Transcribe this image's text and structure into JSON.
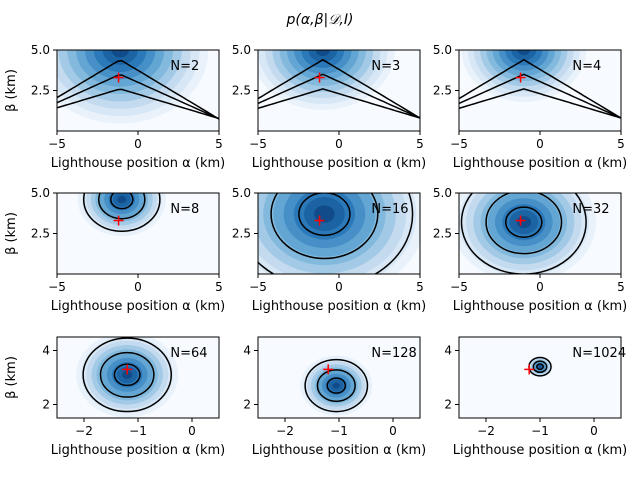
{
  "figure": {
    "suptitle": "p(α,β|𝒟,I)",
    "true_marker": {
      "alpha": -1.2,
      "beta": 3.3,
      "color": "#ff0000",
      "symbol": "+"
    },
    "colormap": "Blues",
    "contour_color": "#000000"
  },
  "chart_data": [
    {
      "type": "heatmap",
      "annotation": "N=2",
      "N": 2,
      "xlabel": "Lighthouse position α (km)",
      "ylabel": "β (km)",
      "xlim": [
        -5,
        5
      ],
      "ylim": [
        0,
        5
      ],
      "xticks": [
        "−5",
        "0",
        "5"
      ],
      "yticks": [
        "2.5",
        "5.0"
      ],
      "ytick_values": [
        2.5,
        5.0
      ],
      "xtick_values": [
        -5,
        0,
        5
      ],
      "peak": [
        -1.1,
        5.0
      ]
    },
    {
      "type": "heatmap",
      "annotation": "N=3",
      "N": 3,
      "xlabel": "Lighthouse position α (km)",
      "ylabel": "",
      "xlim": [
        -5,
        5
      ],
      "ylim": [
        0,
        5
      ],
      "xticks": [
        "−5",
        "0",
        "5"
      ],
      "yticks": [
        "2.5",
        "5.0"
      ],
      "ytick_values": [
        2.5,
        5.0
      ],
      "xtick_values": [
        -5,
        0,
        5
      ],
      "peak": [
        -1.0,
        5.0
      ]
    },
    {
      "type": "heatmap",
      "annotation": "N=4",
      "N": 4,
      "xlabel": "Lighthouse position α (km)",
      "ylabel": "",
      "xlim": [
        -5,
        5
      ],
      "ylim": [
        0,
        5
      ],
      "xticks": [
        "−5",
        "0",
        "5"
      ],
      "yticks": [
        "2.5",
        "5.0"
      ],
      "ytick_values": [
        2.5,
        5.0
      ],
      "xtick_values": [
        -5,
        0,
        5
      ],
      "peak": [
        -1.0,
        5.0
      ]
    },
    {
      "type": "heatmap",
      "annotation": "N=8",
      "N": 8,
      "xlabel": "Lighthouse position α (km)",
      "ylabel": "β (km)",
      "xlim": [
        -5,
        5
      ],
      "ylim": [
        0,
        5
      ],
      "xticks": [
        "−5",
        "0",
        "5"
      ],
      "yticks": [
        "2.5",
        "5.0"
      ],
      "ytick_values": [
        2.5,
        5.0
      ],
      "xtick_values": [
        -5,
        0,
        5
      ],
      "peak": [
        -1.0,
        4.6
      ]
    },
    {
      "type": "heatmap",
      "annotation": "N=16",
      "N": 16,
      "xlabel": "Lighthouse position α (km)",
      "ylabel": "",
      "xlim": [
        -5,
        5
      ],
      "ylim": [
        0,
        5
      ],
      "xticks": [
        "−5",
        "0",
        "5"
      ],
      "yticks": [
        "2.5",
        "5.0"
      ],
      "ytick_values": [
        2.5,
        5.0
      ],
      "xtick_values": [
        -5,
        0,
        5
      ],
      "peak": [
        -0.9,
        3.7
      ]
    },
    {
      "type": "heatmap",
      "annotation": "N=32",
      "N": 32,
      "xlabel": "Lighthouse position α (km)",
      "ylabel": "",
      "xlim": [
        -5,
        5
      ],
      "ylim": [
        0,
        5
      ],
      "xticks": [
        "−5",
        "0",
        "5"
      ],
      "yticks": [
        "2.5",
        "5.0"
      ],
      "ytick_values": [
        2.5,
        5.0
      ],
      "xtick_values": [
        -5,
        0,
        5
      ],
      "peak": [
        -1.0,
        3.2
      ]
    },
    {
      "type": "heatmap",
      "annotation": "N=64",
      "N": 64,
      "xlabel": "Lighthouse position α (km)",
      "ylabel": "β (km)",
      "xlim": [
        -2.5,
        0.5
      ],
      "ylim": [
        1.5,
        4.5
      ],
      "xticks": [
        "−2",
        "−1",
        "0"
      ],
      "yticks": [
        "2",
        "4"
      ],
      "ytick_values": [
        2,
        4
      ],
      "xtick_values": [
        -2,
        -1,
        0
      ],
      "peak": [
        -1.2,
        3.1
      ]
    },
    {
      "type": "heatmap",
      "annotation": "N=128",
      "N": 128,
      "xlabel": "Lighthouse position α (km)",
      "ylabel": "",
      "xlim": [
        -2.5,
        0.5
      ],
      "ylim": [
        1.5,
        4.5
      ],
      "xticks": [
        "−2",
        "−1",
        "0"
      ],
      "yticks": [
        "2",
        "4"
      ],
      "ytick_values": [
        2,
        4
      ],
      "xtick_values": [
        -2,
        -1,
        0
      ],
      "peak": [
        -1.05,
        2.7
      ]
    },
    {
      "type": "heatmap",
      "annotation": "N=1024",
      "N": 1024,
      "xlabel": "Lighthouse position α (km)",
      "ylabel": "",
      "xlim": [
        -2.5,
        0.5
      ],
      "ylim": [
        1.5,
        4.5
      ],
      "xticks": [
        "−2",
        "−1",
        "0"
      ],
      "yticks": [
        "2",
        "4"
      ],
      "ytick_values": [
        2,
        4
      ],
      "xtick_values": [
        -2,
        -1,
        0
      ],
      "peak": [
        -1.0,
        3.4
      ]
    }
  ]
}
